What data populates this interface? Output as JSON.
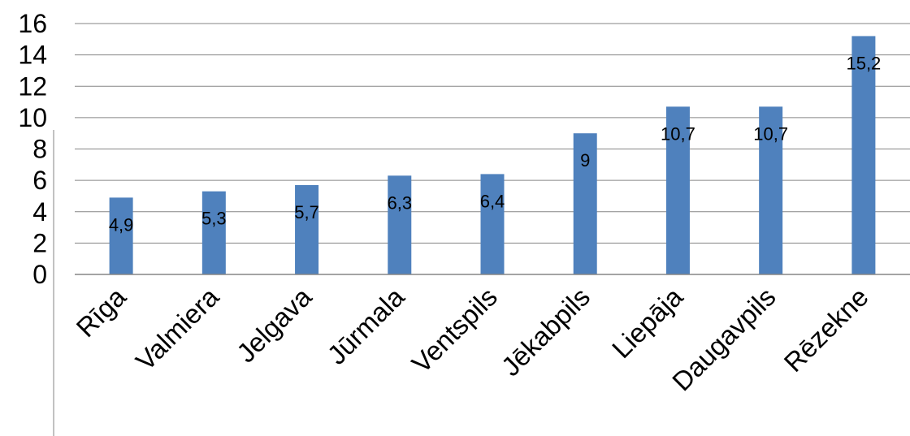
{
  "chart_data": {
    "type": "bar",
    "title": "",
    "xlabel": "",
    "ylabel": "",
    "categories": [
      "Rīga",
      "Valmiera",
      "Jelgava",
      "Jūrmala",
      "Ventspils",
      "Jēkabpils",
      "Liepāja",
      "Daugavpils",
      "Rēzekne"
    ],
    "values": [
      4.9,
      5.3,
      5.7,
      6.3,
      6.4,
      9,
      10.7,
      10.7,
      15.2
    ],
    "data_labels": [
      "4,9",
      "5,3",
      "5,7",
      "6,3",
      "6,4",
      "9",
      "10,7",
      "10,7",
      "15,2"
    ],
    "ylim": [
      0,
      16
    ],
    "yticks": [
      0,
      2,
      4,
      6,
      8,
      10,
      12,
      14,
      16
    ],
    "ytick_labels": [
      "0",
      "2",
      "4",
      "6",
      "8",
      "10",
      "12",
      "14",
      "16"
    ],
    "grid": true,
    "legend": "none",
    "colors": {
      "bar": "#4F81BD",
      "grid": "#868686",
      "axis": "#868686"
    }
  }
}
